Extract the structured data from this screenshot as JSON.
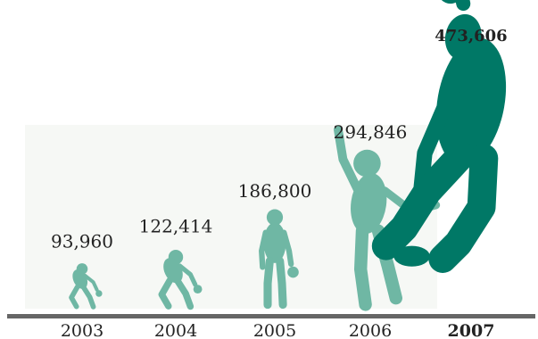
{
  "chart_data": {
    "type": "bar",
    "categories": [
      "2003",
      "2004",
      "2005",
      "2006",
      "2007"
    ],
    "values": [
      93960,
      122414,
      186800,
      294846,
      473606
    ],
    "value_labels": [
      "93,960",
      "122,414",
      "186,800",
      "294,846",
      "473,606"
    ],
    "highlight_category": "2007",
    "title": "",
    "xlabel": "",
    "ylabel": "",
    "ylim": [
      0,
      500000
    ],
    "grid": false,
    "legend": "none",
    "colors": {
      "figure": "#6fb7a4",
      "figure_highlight": "#007866",
      "backdrop": "#f6f8f5",
      "baseline": "#666666",
      "text": "#222222"
    },
    "marks": [
      "crouching-dribble",
      "crouching-dribble",
      "standing-dribble",
      "reaching-jump",
      "slam-dunk"
    ]
  }
}
